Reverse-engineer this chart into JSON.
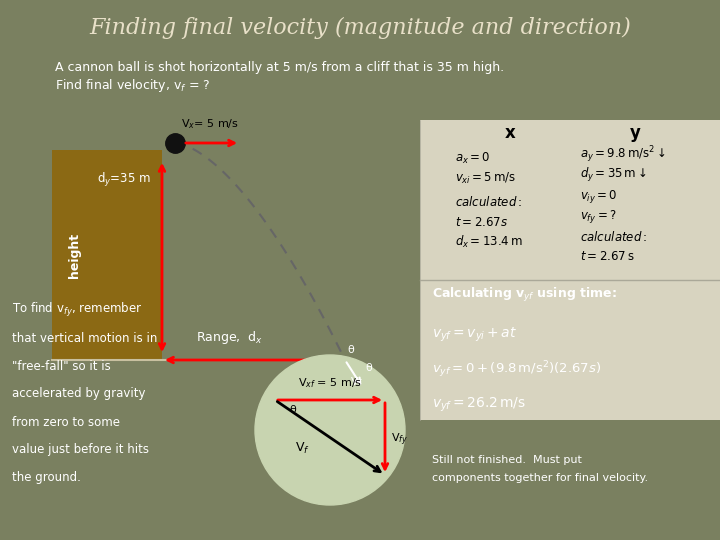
{
  "title": "Finding final velocity (magnitude and direction)",
  "subtitle_line1": "A cannon ball is shot horizontally at 5 m/s from a cliff that is 35 m high.",
  "subtitle_line2": "Find final velocity, v$_f$ = ?",
  "bg_color": "#7a8060",
  "paper_color": "#d8d4c0",
  "title_color": "#e8e0c8",
  "text_color": "#ffffff",
  "cliff_color": "#8B6914",
  "x_col_header": "x",
  "y_col_header": "y",
  "vx_label": "V$_x$= 5 m/s",
  "dy_label": "d$_y$=35 m",
  "height_label": "height",
  "range_label": "Range,  d$_x$",
  "theta_label": "θ",
  "vf_label": "V$_f$",
  "vxf_label": "V$_{xf}$ = 5 m/s",
  "vfy_label": "V$_{fy}$",
  "vf_circle_label": "V$_f$",
  "bottom_left_text": [
    "To find v$_{fy}$, remember",
    "that vertical motion is in",
    "\"free-fall\" so it is",
    "accelerated by gravity",
    "from zero to some",
    "value just before it hits",
    "the ground."
  ],
  "calc_header": "Calculating v$_{yf}$ using time:",
  "eq1": "$v_{yf} = v_{yi} + at$",
  "eq2": "$v_{yf} = 0 + (9.8 \\, \\mathrm{m/s}^2)(2.67s)$",
  "eq3": "$v_{yf} = 26.2 \\, \\mathrm{m/s}$",
  "bottom_note": "Still not finished.  Must put",
  "bottom_note2": "components together for final velocity."
}
